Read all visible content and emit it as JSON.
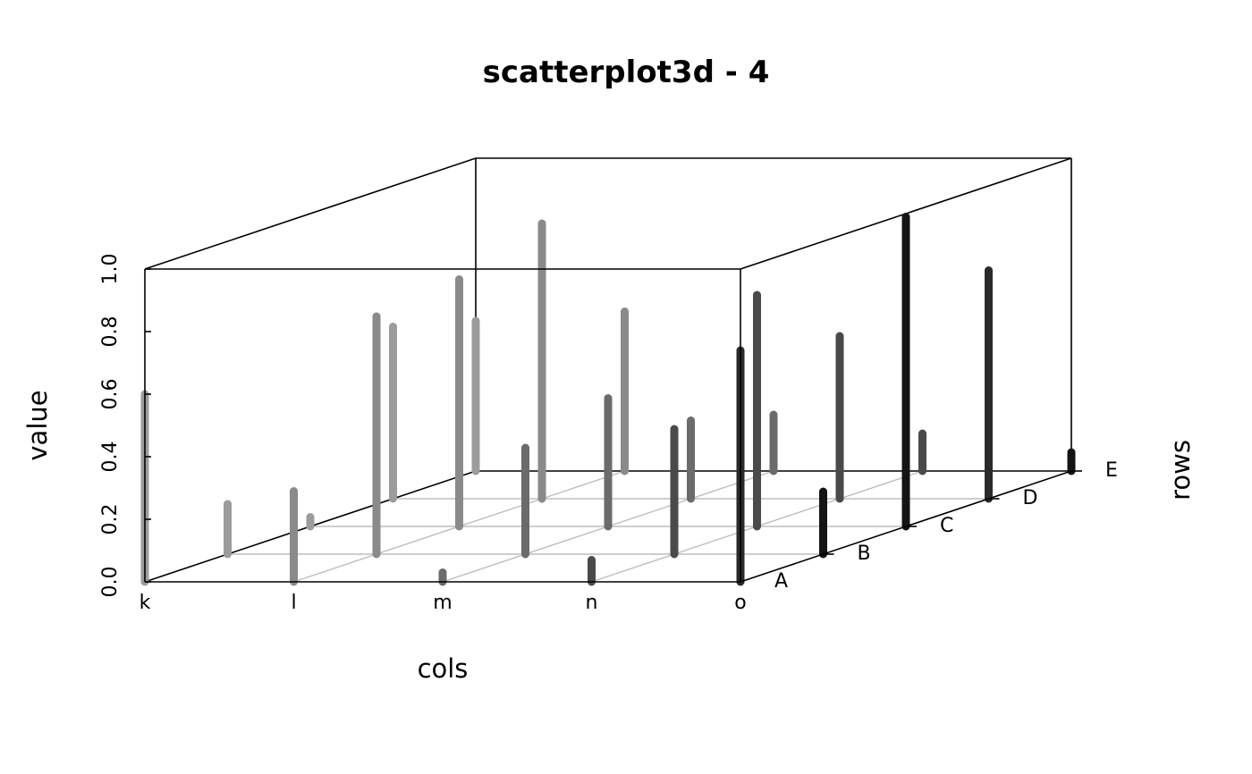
{
  "chart_data": {
    "type": "scatter3d-histogram",
    "title": "scatterplot3d - 4",
    "xlabel": "cols",
    "ylabel": "rows",
    "zlabel": "value",
    "x_categories": [
      "k",
      "l",
      "m",
      "n",
      "o"
    ],
    "y_categories": [
      "A",
      "B",
      "C",
      "D",
      "E"
    ],
    "zlim": [
      0,
      1
    ],
    "z_ticks": [
      "0.0",
      "0.2",
      "0.4",
      "0.6",
      "0.8",
      "1.0"
    ],
    "grid": true,
    "colors": {
      "k": "#9c9c9c",
      "l": "#8a8a8a",
      "m": "#6b6b6b",
      "n": "#4a4a4a",
      "o": "#2a2a2a",
      "o_late": "#141414"
    },
    "points": [
      {
        "col": "k",
        "row": "A",
        "value": 0.6
      },
      {
        "col": "k",
        "row": "B",
        "value": 0.16
      },
      {
        "col": "k",
        "row": "C",
        "value": 0.03
      },
      {
        "col": "k",
        "row": "D",
        "value": 0.55
      },
      {
        "col": "k",
        "row": "E",
        "value": 0.48
      },
      {
        "col": "l",
        "row": "A",
        "value": 0.29
      },
      {
        "col": "l",
        "row": "B",
        "value": 0.76
      },
      {
        "col": "l",
        "row": "C",
        "value": 0.79
      },
      {
        "col": "l",
        "row": "D",
        "value": 0.88
      },
      {
        "col": "l",
        "row": "E",
        "value": 0.51
      },
      {
        "col": "m",
        "row": "A",
        "value": 0.03
      },
      {
        "col": "m",
        "row": "B",
        "value": 0.34
      },
      {
        "col": "m",
        "row": "C",
        "value": 0.41
      },
      {
        "col": "m",
        "row": "D",
        "value": 0.25
      },
      {
        "col": "m",
        "row": "E",
        "value": 0.18
      },
      {
        "col": "n",
        "row": "A",
        "value": 0.07
      },
      {
        "col": "n",
        "row": "B",
        "value": 0.4
      },
      {
        "col": "n",
        "row": "C",
        "value": 0.74
      },
      {
        "col": "n",
        "row": "D",
        "value": 0.52
      },
      {
        "col": "n",
        "row": "E",
        "value": 0.12
      },
      {
        "col": "o",
        "row": "A",
        "value": 0.74
      },
      {
        "col": "o",
        "row": "B",
        "value": 0.2
      },
      {
        "col": "o",
        "row": "C",
        "value": 0.99
      },
      {
        "col": "o",
        "row": "D",
        "value": 0.73
      },
      {
        "col": "o",
        "row": "E",
        "value": 0.06
      }
    ]
  }
}
